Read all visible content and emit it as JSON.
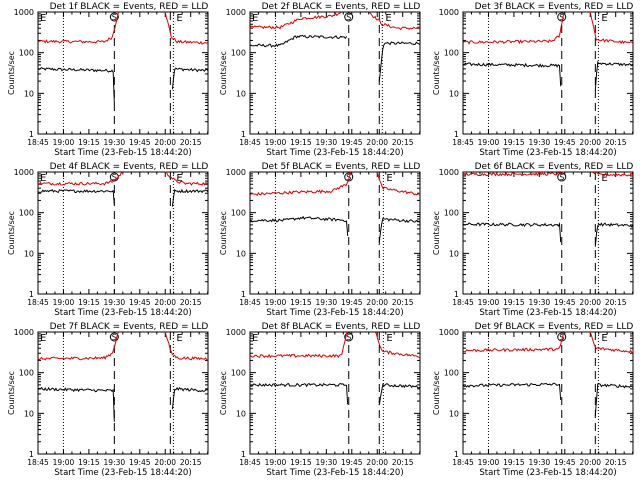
{
  "chart_data": [
    {
      "type": "line",
      "title": "Det 1f BLACK = Events, RED = LLD",
      "xlabel": "Start Time (23-Feb-15 18:44:20)",
      "ylabel": "Counts/sec",
      "ylim": [
        1,
        1000
      ],
      "yscale": "log",
      "xlim": [
        18.75,
        20.42
      ],
      "xtick_labels": [
        "18:45",
        "19:00",
        "19:15",
        "19:30",
        "19:45",
        "20:00",
        "20:15"
      ],
      "ytick_labels": [
        "1",
        "10",
        "100",
        "1000"
      ],
      "annotations": {
        "E1": "E",
        "S": "S",
        "E2": "E"
      },
      "series": [
        {
          "color": "#000000",
          "profile": [
            [
              18.75,
              40
            ],
            [
              19.49,
              36
            ],
            [
              19.5,
              6
            ]
          ],
          "profile2": [
            [
              20.07,
              13
            ],
            [
              20.09,
              40
            ],
            [
              20.42,
              36
            ]
          ]
        },
        {
          "color": "#dd0000",
          "profile": [
            [
              18.75,
              190
            ],
            [
              19.4,
              185
            ],
            [
              19.48,
              240
            ],
            [
              19.54,
              1000
            ]
          ],
          "profile2": [
            [
              20.0,
              1000
            ],
            [
              20.06,
              240
            ],
            [
              20.12,
              185
            ],
            [
              20.42,
              175
            ]
          ]
        }
      ],
      "markers": {
        "dash": [
          19.5,
          20.05
        ],
        "dotted": [
          19.0,
          20.08
        ]
      }
    },
    {
      "type": "line",
      "title": "Det 2f BLACK = Events, RED = LLD",
      "xlabel": "Start Time (23-Feb-15 18:44:20)",
      "ylabel": "Counts/sec",
      "ylim": [
        1,
        1000
      ],
      "yscale": "log",
      "xlim": [
        18.75,
        20.42
      ],
      "xtick_labels": [
        "18:45",
        "19:00",
        "19:15",
        "19:30",
        "19:45",
        "20:00",
        "20:15"
      ],
      "ytick_labels": [
        "1",
        "10",
        "100",
        "1000"
      ],
      "annotations": {
        "E1": "E",
        "S": "S",
        "E2": "E"
      },
      "series": [
        {
          "color": "#000000",
          "profile": [
            [
              18.75,
              150
            ],
            [
              19.05,
              150
            ],
            [
              19.2,
              250
            ],
            [
              19.7,
              240
            ]
          ],
          "profile2": [
            [
              20.02,
              20
            ],
            [
              20.06,
              170
            ],
            [
              20.42,
              170
            ]
          ]
        },
        {
          "color": "#dd0000",
          "profile": [
            [
              18.75,
              420
            ],
            [
              19.05,
              420
            ],
            [
              19.25,
              700
            ],
            [
              19.55,
              800
            ],
            [
              19.65,
              1000
            ]
          ],
          "profile2": [
            [
              19.92,
              1000
            ],
            [
              20.05,
              500
            ],
            [
              20.2,
              400
            ],
            [
              20.42,
              400
            ]
          ]
        }
      ],
      "markers": {
        "dash": [
          19.72,
          20.02
        ],
        "dotted": [
          19.0,
          20.05
        ]
      }
    },
    {
      "type": "line",
      "title": "Det 3f BLACK = Events, RED = LLD",
      "xlabel": "Start Time (23-Feb-15 18:44:20)",
      "ylabel": "Counts/sec",
      "ylim": [
        1,
        1000
      ],
      "yscale": "log",
      "xlim": [
        18.75,
        20.42
      ],
      "xtick_labels": [
        "18:45",
        "19:00",
        "19:15",
        "19:30",
        "19:45",
        "20:00",
        "20:15"
      ],
      "ytick_labels": [
        "1",
        "10",
        "100",
        "1000"
      ],
      "annotations": {
        "S": "S",
        "E2": "E"
      },
      "series": [
        {
          "color": "#000000",
          "profile": [
            [
              18.75,
              52
            ],
            [
              19.7,
              48
            ],
            [
              19.71,
              15
            ]
          ],
          "profile2": [
            [
              20.05,
              12
            ],
            [
              20.07,
              55
            ],
            [
              20.42,
              50
            ]
          ]
        },
        {
          "color": "#dd0000",
          "profile": [
            [
              18.75,
              180
            ],
            [
              19.62,
              190
            ],
            [
              19.7,
              260
            ],
            [
              19.74,
              1000
            ]
          ],
          "profile2": [
            [
              20.0,
              1000
            ],
            [
              20.06,
              210
            ],
            [
              20.42,
              170
            ]
          ]
        }
      ],
      "markers": {
        "dash": [
          19.72,
          20.05
        ],
        "dotted": [
          19.0,
          20.08
        ]
      }
    },
    {
      "type": "line",
      "title": "Det 4f BLACK = Events, RED = LLD",
      "xlabel": "Start Time (23-Feb-15 18:44:20)",
      "ylabel": "Counts/sec",
      "ylim": [
        1,
        1000
      ],
      "yscale": "log",
      "xlim": [
        18.75,
        20.42
      ],
      "xtick_labels": [
        "18:45",
        "19:00",
        "19:15",
        "19:30",
        "19:45",
        "20:00",
        "20:15"
      ],
      "ytick_labels": [
        "1",
        "10",
        "100",
        "1000"
      ],
      "annotations": {
        "E1": "E",
        "S": "S",
        "E2": "E"
      },
      "series": [
        {
          "color": "#000000",
          "profile": [
            [
              18.75,
              340
            ],
            [
              19.49,
              340
            ],
            [
              19.5,
              150
            ]
          ],
          "profile2": [
            [
              20.07,
              150
            ],
            [
              20.09,
              340
            ],
            [
              20.42,
              340
            ]
          ]
        },
        {
          "color": "#dd0000",
          "profile": [
            [
              18.75,
              520
            ],
            [
              19.4,
              520
            ],
            [
              19.5,
              600
            ],
            [
              19.58,
              1000
            ]
          ],
          "profile2": [
            [
              20.0,
              1000
            ],
            [
              20.1,
              600
            ],
            [
              20.2,
              520
            ],
            [
              20.42,
              520
            ]
          ]
        }
      ],
      "markers": {
        "dash": [
          19.5,
          20.05
        ],
        "dotted": [
          19.0,
          20.08
        ]
      }
    },
    {
      "type": "line",
      "title": "Det 5f BLACK = Events, RED = LLD",
      "xlabel": "Start Time (23-Feb-15 18:44:20)",
      "ylabel": "Counts/sec",
      "ylim": [
        1,
        1000
      ],
      "yscale": "log",
      "xlim": [
        18.75,
        20.42
      ],
      "xtick_labels": [
        "18:45",
        "19:00",
        "19:15",
        "19:30",
        "19:45",
        "20:00",
        "20:15"
      ],
      "ytick_labels": [
        "1",
        "10",
        "100",
        "1000"
      ],
      "annotations": {
        "S": "S",
        "E2": "E"
      },
      "series": [
        {
          "color": "#000000",
          "profile": [
            [
              18.75,
              65
            ],
            [
              19.1,
              65
            ],
            [
              19.25,
              75
            ],
            [
              19.7,
              65
            ],
            [
              19.71,
              25
            ]
          ],
          "profile2": [
            [
              20.02,
              20
            ],
            [
              20.05,
              70
            ],
            [
              20.42,
              60
            ]
          ]
        },
        {
          "color": "#dd0000",
          "profile": [
            [
              18.75,
              280
            ],
            [
              19.2,
              320
            ],
            [
              19.55,
              340
            ],
            [
              19.7,
              500
            ],
            [
              19.74,
              1000
            ]
          ],
          "profile2": [
            [
              20.0,
              1000
            ],
            [
              20.05,
              400
            ],
            [
              20.25,
              330
            ],
            [
              20.42,
              280
            ]
          ]
        }
      ],
      "markers": {
        "dash": [
          19.72,
          20.02
        ],
        "dotted": [
          19.0,
          20.06
        ]
      }
    },
    {
      "type": "line",
      "title": "Det 6f BLACK = Events, RED = LLD",
      "xlabel": "Start Time (23-Feb-15 18:44:20)",
      "ylabel": "Counts/sec",
      "ylim": [
        1,
        1000
      ],
      "yscale": "log",
      "xlim": [
        18.75,
        20.42
      ],
      "xtick_labels": [
        "18:45",
        "19:00",
        "19:15",
        "19:30",
        "19:45",
        "20:00",
        "20:15"
      ],
      "ytick_labels": [
        "1",
        "10",
        "100",
        "1000"
      ],
      "annotations": {
        "S": "S",
        "E2": "E"
      },
      "series": [
        {
          "color": "#000000",
          "profile": [
            [
              18.75,
              52
            ],
            [
              19.7,
              50
            ],
            [
              19.71,
              18
            ]
          ],
          "profile2": [
            [
              20.05,
              15
            ],
            [
              20.07,
              52
            ],
            [
              20.42,
              48
            ]
          ]
        },
        {
          "color": "#dd0000",
          "profile": [
            [
              18.75,
              880
            ],
            [
              19.7,
              900
            ],
            [
              19.74,
              1000
            ]
          ],
          "profile2": [
            [
              20.02,
              1000
            ],
            [
              20.08,
              860
            ],
            [
              20.42,
              850
            ]
          ]
        }
      ],
      "markers": {
        "dash": [
          19.72,
          20.05
        ],
        "dotted": [
          19.0,
          20.08
        ]
      }
    },
    {
      "type": "line",
      "title": "Det 7f BLACK = Events, RED = LLD",
      "xlabel": "Start Time (23-Feb-15 18:44:20)",
      "ylabel": "Counts/sec",
      "ylim": [
        1,
        1000
      ],
      "yscale": "log",
      "xlim": [
        18.75,
        20.42
      ],
      "xtick_labels": [
        "18:45",
        "19:00",
        "19:15",
        "19:30",
        "19:45",
        "20:00",
        "20:15"
      ],
      "ytick_labels": [
        "1",
        "10",
        "100",
        "1000"
      ],
      "annotations": {
        "E1": "E",
        "S": "S",
        "E2": "E"
      },
      "series": [
        {
          "color": "#000000",
          "profile": [
            [
              18.75,
              40
            ],
            [
              19.49,
              36
            ],
            [
              19.5,
              6
            ]
          ],
          "profile2": [
            [
              20.07,
              12
            ],
            [
              20.09,
              40
            ],
            [
              20.42,
              36
            ]
          ]
        },
        {
          "color": "#dd0000",
          "profile": [
            [
              18.75,
              220
            ],
            [
              19.4,
              230
            ],
            [
              19.48,
              300
            ],
            [
              19.54,
              1000
            ]
          ],
          "profile2": [
            [
              20.0,
              1000
            ],
            [
              20.06,
              300
            ],
            [
              20.12,
              230
            ],
            [
              20.42,
              220
            ]
          ]
        }
      ],
      "markers": {
        "dash": [
          19.5,
          20.05
        ],
        "dotted": [
          19.0,
          20.08
        ]
      }
    },
    {
      "type": "line",
      "title": "Det 8f BLACK = Events, RED = LLD",
      "xlabel": "Start Time (23-Feb-15 18:44:20)",
      "ylabel": "Counts/sec",
      "ylim": [
        1,
        1000
      ],
      "yscale": "log",
      "xlim": [
        18.75,
        20.42
      ],
      "xtick_labels": [
        "18:45",
        "19:00",
        "19:15",
        "19:30",
        "19:45",
        "20:00",
        "20:15"
      ],
      "ytick_labels": [
        "1",
        "10",
        "100",
        "1000"
      ],
      "annotations": {
        "E1": "E",
        "S": "S",
        "E2": "E"
      },
      "series": [
        {
          "color": "#000000",
          "profile": [
            [
              18.75,
              50
            ],
            [
              19.7,
              50
            ],
            [
              19.71,
              18
            ]
          ],
          "profile2": [
            [
              20.02,
              15
            ],
            [
              20.05,
              50
            ],
            [
              20.42,
              45
            ]
          ]
        },
        {
          "color": "#dd0000",
          "profile": [
            [
              18.75,
              260
            ],
            [
              19.65,
              260
            ],
            [
              19.7,
              1000
            ]
          ],
          "profile2": [
            [
              19.98,
              1000
            ],
            [
              20.05,
              330
            ],
            [
              20.42,
              250
            ]
          ]
        }
      ],
      "markers": {
        "dash": [
          19.72,
          20.02
        ],
        "dotted": [
          19.0,
          20.06
        ]
      }
    },
    {
      "type": "line",
      "title": "Det 9f BLACK = Events, RED = LLD",
      "xlabel": "Start Time (23-Feb-15 18:44:20)",
      "ylabel": "Counts/sec",
      "ylim": [
        1,
        1000
      ],
      "yscale": "log",
      "xlim": [
        18.75,
        20.42
      ],
      "xtick_labels": [
        "18:45",
        "19:00",
        "19:15",
        "19:30",
        "19:45",
        "20:00",
        "20:15"
      ],
      "ytick_labels": [
        "1",
        "10",
        "100",
        "1000"
      ],
      "annotations": {
        "S": "S",
        "E2": "E"
      },
      "series": [
        {
          "color": "#000000",
          "profile": [
            [
              18.75,
              48
            ],
            [
              19.7,
              52
            ],
            [
              19.71,
              20
            ]
          ],
          "profile2": [
            [
              20.05,
              8
            ],
            [
              20.07,
              50
            ],
            [
              20.42,
              45
            ]
          ]
        },
        {
          "color": "#dd0000",
          "profile": [
            [
              18.75,
              350
            ],
            [
              19.7,
              380
            ],
            [
              19.74,
              1000
            ]
          ],
          "profile2": [
            [
              20.0,
              1000
            ],
            [
              20.05,
              400
            ],
            [
              20.42,
              330
            ]
          ]
        }
      ],
      "markers": {
        "dash": [
          19.72,
          20.05
        ],
        "dotted": [
          19.0,
          20.08
        ]
      }
    }
  ]
}
